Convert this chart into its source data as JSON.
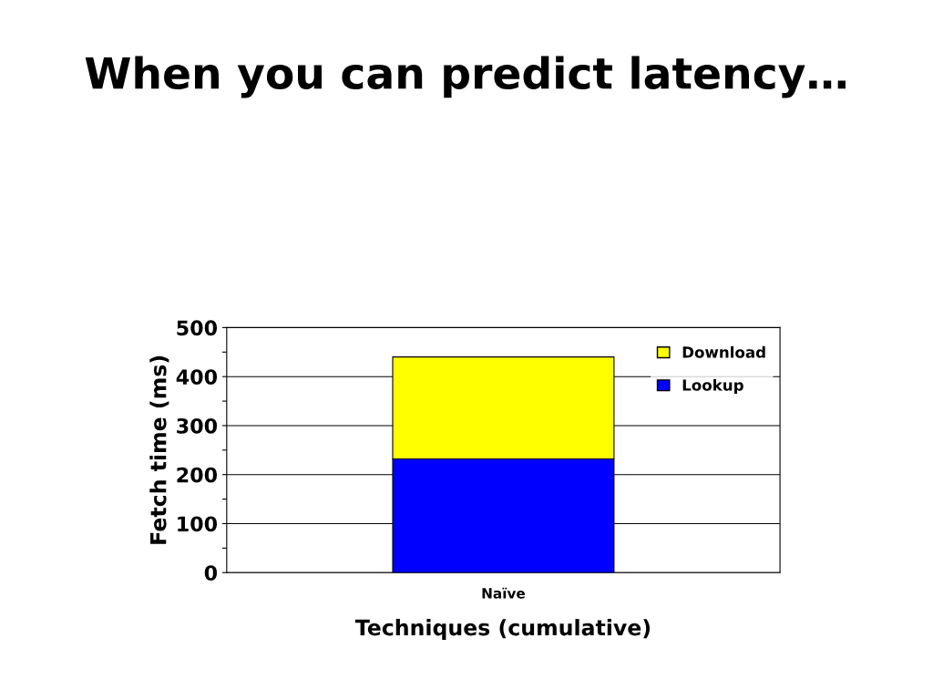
{
  "chart_data": {
    "type": "bar",
    "title": "When you can predict latency…",
    "xlabel": "Techniques (cumulative)",
    "ylabel": "Fetch time (ms)",
    "categories": [
      "Naïve"
    ],
    "stacked": true,
    "series": [
      {
        "name": "Lookup",
        "color": "#0000ff",
        "values": [
          232
        ]
      },
      {
        "name": "Download",
        "color": "#ffff00",
        "values": [
          208
        ]
      }
    ],
    "ylim": [
      0,
      500
    ],
    "yticks": [
      0,
      {
        "value": 50,
        "label": null
      },
      100,
      {
        "value": 150,
        "label": null
      },
      200,
      {
        "value": 250,
        "label": null
      },
      300,
      {
        "value": 350,
        "label": null
      },
      400,
      {
        "value": 450,
        "label": null
      },
      500
    ],
    "grid": "y",
    "legend": "top right"
  }
}
